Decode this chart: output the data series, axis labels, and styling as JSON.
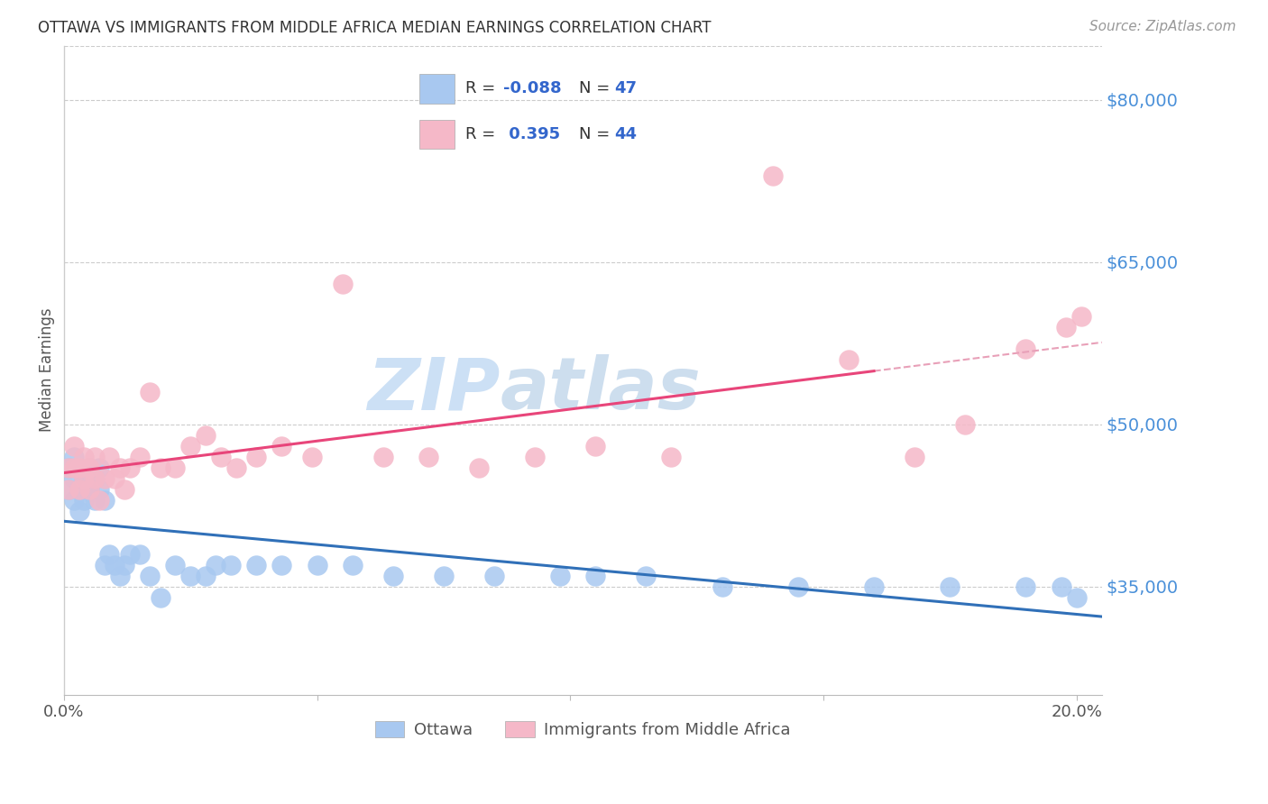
{
  "title": "OTTAWA VS IMMIGRANTS FROM MIDDLE AFRICA MEDIAN EARNINGS CORRELATION CHART",
  "source": "Source: ZipAtlas.com",
  "ylabel": "Median Earnings",
  "xlim": [
    0.0,
    0.205
  ],
  "ylim": [
    25000,
    85000
  ],
  "yticks": [
    35000,
    50000,
    65000,
    80000
  ],
  "ytick_labels": [
    "$35,000",
    "$50,000",
    "$65,000",
    "$80,000"
  ],
  "series1_color": "#a8c8f0",
  "series2_color": "#f5b8c8",
  "line1_color": "#3070b8",
  "line2_color": "#e8457a",
  "line2_dash_color": "#e8a0b8",
  "watermark_color": "#cce0f5",
  "ottawa_x": [
    0.001,
    0.001,
    0.002,
    0.002,
    0.002,
    0.003,
    0.003,
    0.004,
    0.004,
    0.005,
    0.005,
    0.006,
    0.006,
    0.007,
    0.007,
    0.008,
    0.008,
    0.009,
    0.01,
    0.011,
    0.012,
    0.013,
    0.015,
    0.017,
    0.019,
    0.022,
    0.025,
    0.028,
    0.03,
    0.033,
    0.038,
    0.043,
    0.05,
    0.057,
    0.065,
    0.075,
    0.085,
    0.098,
    0.105,
    0.115,
    0.13,
    0.145,
    0.16,
    0.175,
    0.19,
    0.197,
    0.2
  ],
  "ottawa_y": [
    44000,
    46000,
    43000,
    45000,
    47000,
    42000,
    44000,
    45000,
    43000,
    46000,
    44000,
    43000,
    45000,
    44000,
    46000,
    43000,
    37000,
    38000,
    37000,
    36000,
    37000,
    38000,
    38000,
    36000,
    34000,
    37000,
    36000,
    36000,
    37000,
    37000,
    37000,
    37000,
    37000,
    37000,
    36000,
    36000,
    36000,
    36000,
    36000,
    36000,
    35000,
    35000,
    35000,
    35000,
    35000,
    35000,
    34000
  ],
  "immigrants_x": [
    0.001,
    0.001,
    0.002,
    0.002,
    0.003,
    0.003,
    0.004,
    0.004,
    0.005,
    0.005,
    0.006,
    0.006,
    0.007,
    0.008,
    0.009,
    0.01,
    0.011,
    0.012,
    0.013,
    0.015,
    0.017,
    0.019,
    0.022,
    0.025,
    0.028,
    0.031,
    0.034,
    0.038,
    0.043,
    0.049,
    0.055,
    0.063,
    0.072,
    0.082,
    0.093,
    0.105,
    0.12,
    0.14,
    0.155,
    0.168,
    0.178,
    0.19,
    0.198,
    0.201
  ],
  "immigrants_y": [
    46000,
    44000,
    46000,
    48000,
    44000,
    46000,
    45000,
    47000,
    44000,
    46000,
    45000,
    47000,
    43000,
    45000,
    47000,
    45000,
    46000,
    44000,
    46000,
    47000,
    53000,
    46000,
    46000,
    48000,
    49000,
    47000,
    46000,
    47000,
    48000,
    47000,
    63000,
    47000,
    47000,
    46000,
    47000,
    48000,
    47000,
    73000,
    56000,
    47000,
    50000,
    57000,
    59000,
    60000
  ]
}
